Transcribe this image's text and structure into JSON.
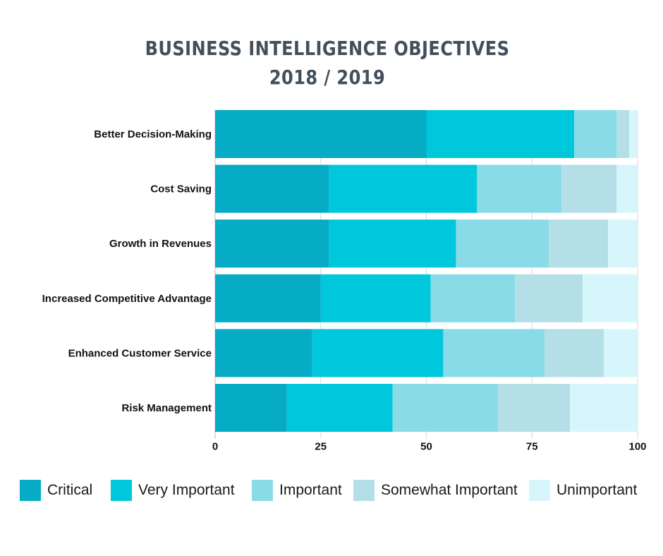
{
  "title_line1": "BUSINESS INTELLIGENCE OBJECTIVES",
  "title_line2": "2018 / 2019",
  "chart_data": {
    "type": "bar",
    "orientation": "horizontal",
    "stacked": true,
    "categories": [
      "Better Decision-Making",
      "Cost Saving",
      "Growth in Revenues",
      "Increased Competitive Advantage",
      "Enhanced Customer Service",
      "Risk Management"
    ],
    "series": [
      {
        "name": "Critical",
        "color": "#06abc6",
        "values": [
          50,
          27,
          27,
          25,
          23,
          17
        ]
      },
      {
        "name": "Very Important",
        "color": "#00c8dc",
        "values": [
          35,
          35,
          30,
          26,
          31,
          25
        ]
      },
      {
        "name": "Important",
        "color": "#8adbe8",
        "values": [
          10,
          20,
          22,
          20,
          24,
          25
        ]
      },
      {
        "name": "Somewhat Important",
        "color": "#b4dfe6",
        "values": [
          3,
          13,
          14,
          16,
          14,
          17
        ]
      },
      {
        "name": "Unimportant",
        "color": "#d7f6fc",
        "values": [
          2,
          5,
          7,
          13,
          8,
          16
        ]
      }
    ],
    "x_ticks": [
      "0",
      "25",
      "50",
      "75",
      "100"
    ],
    "xlim": [
      0,
      100
    ],
    "grid": true,
    "legend_position": "bottom"
  }
}
